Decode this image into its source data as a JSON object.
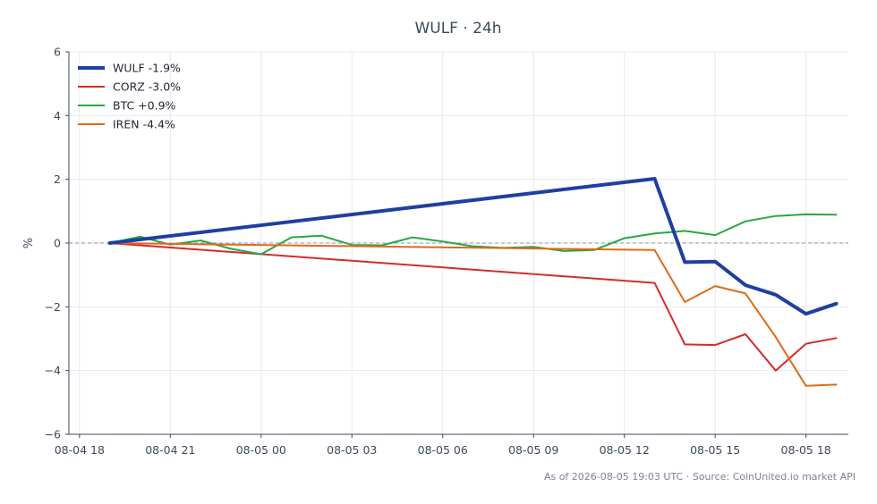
{
  "chart_data": {
    "type": "line",
    "title": "WULF · 24h",
    "ylabel": "%",
    "xlabel": "",
    "ylim": [
      -6,
      6
    ],
    "yticks": [
      6,
      4,
      2,
      0,
      -2,
      -4,
      -6
    ],
    "ytick_labels": [
      "6",
      "4",
      "2",
      "0",
      "−2",
      "−4",
      "−6"
    ],
    "xlim": [
      -0.35,
      25.4
    ],
    "xticks": [
      0,
      3,
      6,
      9,
      12,
      15,
      18,
      21,
      24
    ],
    "xtick_labels": [
      "08-04 18",
      "08-04 21",
      "08-05 00",
      "08-05 03",
      "08-05 06",
      "08-05 09",
      "08-05 12",
      "08-05 15",
      "08-05 18"
    ],
    "grid": true,
    "zero_line": true,
    "legend_position": "top-left",
    "series": [
      {
        "name": "WULF -1.9%",
        "color": "#1f3fa0",
        "width": 4,
        "x": [
          1,
          19,
          20,
          21,
          22,
          23,
          24,
          25
        ],
        "values": [
          0,
          2.02,
          -0.6,
          -0.58,
          -1.32,
          -1.62,
          -2.22,
          -1.9
        ]
      },
      {
        "name": "CORZ -3.0%",
        "color": "#d62b2b",
        "width": 2,
        "x": [
          1,
          19,
          20,
          21,
          22,
          23,
          24,
          25
        ],
        "values": [
          0,
          -1.25,
          -3.18,
          -3.2,
          -2.86,
          -4.0,
          -3.16,
          -2.98
        ]
      },
      {
        "name": "BTC +0.9%",
        "color": "#28a745",
        "width": 2,
        "x": [
          1,
          2,
          3,
          4,
          5,
          6,
          7,
          8,
          9,
          10,
          11,
          12,
          13,
          14,
          15,
          16,
          17,
          18,
          19,
          20,
          21,
          22,
          23,
          24,
          25
        ],
        "values": [
          0,
          0.2,
          -0.05,
          0.08,
          -0.18,
          -0.35,
          0.18,
          0.23,
          -0.06,
          -0.07,
          0.18,
          0.05,
          -0.1,
          -0.15,
          -0.12,
          -0.25,
          -0.22,
          0.15,
          0.3,
          0.38,
          0.25,
          0.68,
          0.85,
          0.9,
          0.89
        ]
      },
      {
        "name": "IREN -4.4%",
        "color": "#e06a1a",
        "width": 2,
        "x": [
          1,
          19,
          20,
          21,
          22,
          23,
          24,
          25
        ],
        "values": [
          0,
          -0.22,
          -1.85,
          -1.35,
          -1.58,
          -2.95,
          -4.48,
          -4.44
        ]
      }
    ]
  },
  "footer": "As of 2026-08-05 19:03 UTC · Source: CoinUnited.io market API"
}
